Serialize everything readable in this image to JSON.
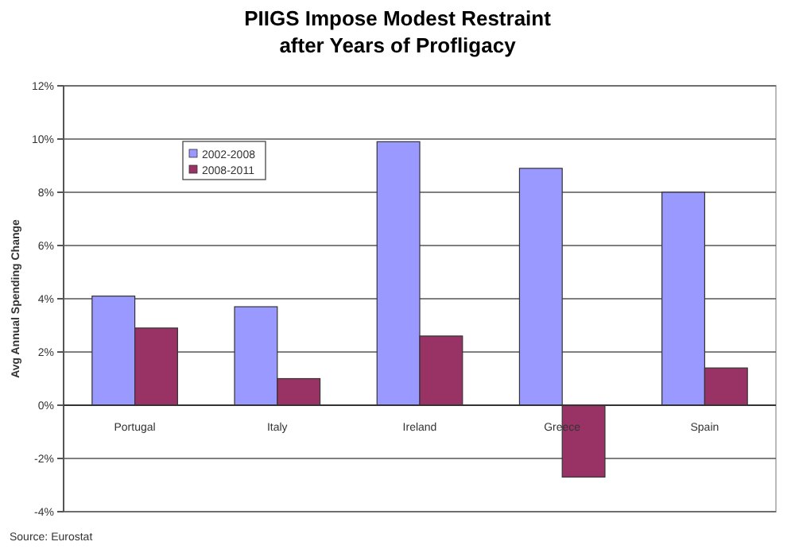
{
  "chart_data": {
    "type": "bar",
    "title": "PIIGS Impose Modest Restraint\nafter Years of Profligacy",
    "ylabel": "Avg Annual Spending Change",
    "categories": [
      "Portugal",
      "Italy",
      "Ireland",
      "Greece",
      "Spain"
    ],
    "series": [
      {
        "name": "2002-2008",
        "color": "#9999ff",
        "values": [
          4.1,
          3.7,
          9.9,
          8.9,
          8.0
        ]
      },
      {
        "name": "2008-2011",
        "color": "#993366",
        "values": [
          2.9,
          1.0,
          2.6,
          -2.7,
          1.4
        ]
      }
    ],
    "ylim": [
      -4,
      12
    ],
    "yticks": [
      {
        "value": -4,
        "label": "-4%"
      },
      {
        "value": -2,
        "label": "-2%"
      },
      {
        "value": 0,
        "label": "0%"
      },
      {
        "value": 2,
        "label": "2%"
      },
      {
        "value": 4,
        "label": "4%"
      },
      {
        "value": 6,
        "label": "6%"
      },
      {
        "value": 8,
        "label": "8%"
      },
      {
        "value": 10,
        "label": "10%"
      },
      {
        "value": 12,
        "label": "12%"
      }
    ],
    "grid": "y",
    "legend": "top left",
    "annotations": [
      "Source: Eurostat"
    ]
  }
}
